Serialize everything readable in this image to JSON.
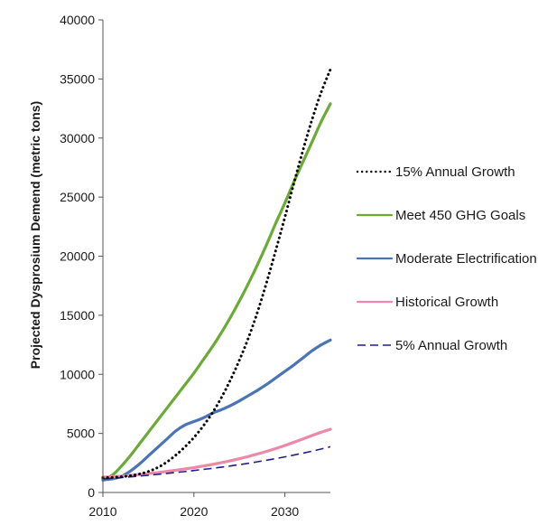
{
  "chart_data": {
    "type": "line",
    "title": "",
    "xlabel": "",
    "ylabel": "Projected Dysprosium Demend (metric tons)",
    "xlim": [
      2010,
      2035
    ],
    "ylim": [
      0,
      40000
    ],
    "x_ticks": [
      2010,
      2020,
      2030
    ],
    "y_ticks": [
      0,
      5000,
      10000,
      15000,
      20000,
      25000,
      30000,
      35000,
      40000
    ],
    "grid": false,
    "legend_position": "right",
    "x": [
      2010,
      2011,
      2012,
      2013,
      2014,
      2015,
      2016,
      2017,
      2018,
      2019,
      2020,
      2021,
      2022,
      2023,
      2024,
      2025,
      2026,
      2027,
      2028,
      2029,
      2030,
      2031,
      2032,
      2033,
      2034,
      2035
    ],
    "series": [
      {
        "name": "15% Annual Growth",
        "color": "#000000",
        "style": "dotted",
        "width": 3,
        "values": [
          1250,
          1270,
          1330,
          1420,
          1560,
          1780,
          2100,
          2560,
          3150,
          3850,
          4650,
          5600,
          6700,
          8000,
          9500,
          11200,
          13100,
          15300,
          17800,
          20500,
          23300,
          26200,
          29000,
          31600,
          33900,
          35800
        ]
      },
      {
        "name": "Meet 450 GHG Goals",
        "color": "#6aaa35",
        "style": "solid",
        "width": 3.2,
        "values": [
          1200,
          1450,
          2200,
          3100,
          4100,
          5100,
          6100,
          7100,
          8100,
          9100,
          10100,
          11200,
          12300,
          13500,
          14800,
          16200,
          17700,
          19300,
          21000,
          22800,
          24500,
          26300,
          28000,
          29700,
          31400,
          32900
        ]
      },
      {
        "name": "Moderate Electrification",
        "color": "#4a74b5",
        "style": "solid",
        "width": 3.2,
        "values": [
          1050,
          1150,
          1350,
          1800,
          2400,
          3100,
          3800,
          4500,
          5200,
          5700,
          6000,
          6300,
          6700,
          7000,
          7350,
          7750,
          8200,
          8650,
          9150,
          9700,
          10250,
          10800,
          11400,
          12000,
          12500,
          12900
        ]
      },
      {
        "name": "Historical Growth",
        "color": "#ea8aa8",
        "style": "solid",
        "width": 3.2,
        "values": [
          1300,
          1330,
          1380,
          1450,
          1520,
          1600,
          1680,
          1780,
          1880,
          1990,
          2100,
          2230,
          2370,
          2520,
          2680,
          2860,
          3050,
          3260,
          3480,
          3720,
          3980,
          4250,
          4530,
          4830,
          5100,
          5350
        ]
      },
      {
        "name": "5% Annual Growth",
        "color": "#1f1f8a",
        "style": "dashed",
        "width": 1.6,
        "values": [
          1150,
          1200,
          1260,
          1320,
          1390,
          1460,
          1530,
          1610,
          1690,
          1770,
          1860,
          1950,
          2040,
          2140,
          2240,
          2360,
          2470,
          2600,
          2730,
          2870,
          3010,
          3170,
          3330,
          3500,
          3680,
          3870
        ]
      }
    ]
  }
}
